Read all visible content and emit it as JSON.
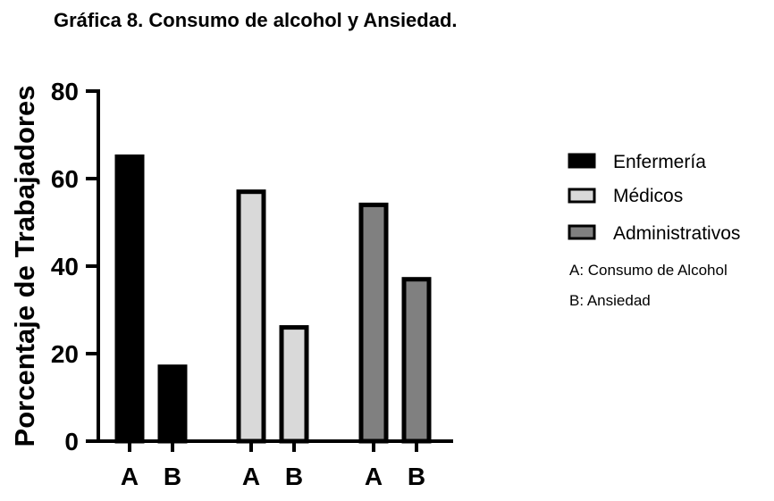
{
  "chart_data": {
    "type": "bar",
    "title": "Gráfica 8. Consumo de alcohol y Ansiedad.",
    "xlabel": "",
    "ylabel": "Porcentaje de Trabajadores",
    "ylim": [
      0,
      80
    ],
    "yticks": [
      "0",
      "20",
      "40",
      "60",
      "80"
    ],
    "grid": false,
    "legend_position": "right",
    "categories": [
      "A",
      "B"
    ],
    "category_notes": [
      "A: Consumo de Alcohol",
      "B: Ansiedad"
    ],
    "series": [
      {
        "name": "Enfermería",
        "values": [
          65,
          17
        ],
        "color": "#000000"
      },
      {
        "name": "Médicos",
        "values": [
          57,
          26
        ],
        "color": "#d9d9d9"
      },
      {
        "name": "Administrativos",
        "values": [
          54,
          37
        ],
        "color": "#808080"
      }
    ],
    "bar_edge_color": "#000000"
  }
}
